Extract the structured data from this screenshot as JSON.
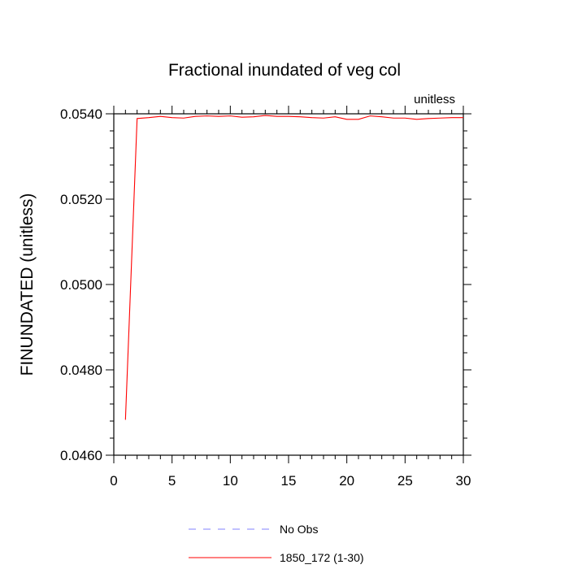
{
  "chart_data": {
    "type": "line",
    "title": "Fractional inundated of veg col",
    "units_label": "unitless",
    "xlabel": "",
    "ylabel": "FINUNDATED  (unitless)",
    "xlim": [
      0,
      30
    ],
    "ylim": [
      0.046,
      0.054
    ],
    "x_ticks": [
      0,
      5,
      10,
      15,
      20,
      25,
      30
    ],
    "x_tick_labels": [
      "0",
      "5",
      "10",
      "15",
      "20",
      "25",
      "30"
    ],
    "y_ticks": [
      0.046,
      0.048,
      0.05,
      0.052,
      0.054
    ],
    "y_tick_labels": [
      "0.0460",
      "0.0480",
      "0.0500",
      "0.0520",
      "0.0540"
    ],
    "grid": false,
    "legend_position": "bottom",
    "series": [
      {
        "name": "No Obs",
        "color": "#8080ff",
        "dash": "dashed",
        "x": [],
        "y": []
      },
      {
        "name": "1850_172 (1-30)",
        "color": "#ff0000",
        "dash": "solid",
        "x": [
          1,
          2,
          3,
          4,
          5,
          6,
          7,
          8,
          9,
          10,
          11,
          12,
          13,
          14,
          15,
          16,
          17,
          18,
          19,
          20,
          21,
          22,
          23,
          24,
          25,
          26,
          27,
          28,
          29,
          30
        ],
        "y": [
          0.04683,
          0.05389,
          0.05391,
          0.05394,
          0.05391,
          0.0539,
          0.05394,
          0.05395,
          0.05394,
          0.05395,
          0.05392,
          0.05393,
          0.05396,
          0.05394,
          0.05394,
          0.05393,
          0.05391,
          0.0539,
          0.05393,
          0.05387,
          0.05387,
          0.05395,
          0.05393,
          0.0539,
          0.0539,
          0.05387,
          0.05389,
          0.0539,
          0.05391,
          0.05391
        ]
      }
    ]
  }
}
